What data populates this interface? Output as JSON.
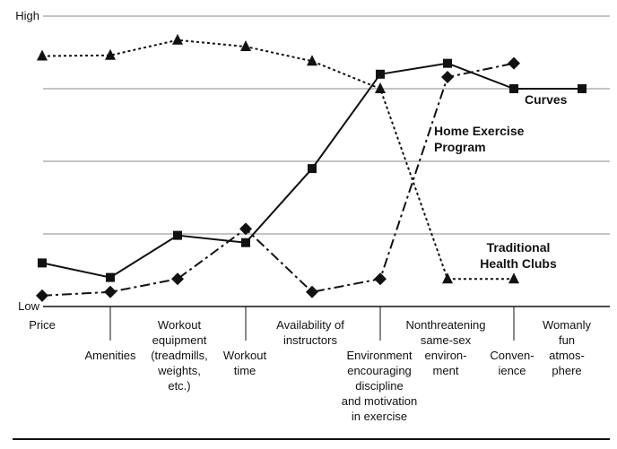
{
  "chart_data": {
    "type": "line",
    "y_axis": {
      "high_label": "High",
      "low_label": "Low",
      "ylim": [
        0,
        4
      ]
    },
    "grid": true,
    "categories": [
      [
        "Price"
      ],
      [
        "Amenities"
      ],
      [
        "Workout",
        "equipment",
        "(treadmills,",
        "weights,",
        "etc.)"
      ],
      [
        "Workout",
        "time"
      ],
      [
        "Availability of",
        "instructors"
      ],
      [
        "Environment",
        "encouraging",
        "discipline",
        "and motivation",
        "in exercise"
      ],
      [
        "Nonthreatening",
        "same-sex",
        "environ-",
        "ment"
      ],
      [
        "Conven-",
        "ience"
      ],
      [
        "Womanly",
        "fun",
        "atmos-",
        "phere"
      ]
    ],
    "series": [
      {
        "name": "Curves",
        "marker": "square",
        "line_style": "solid",
        "values": [
          0.6,
          0.4,
          0.98,
          0.88,
          1.9,
          3.2,
          3.35,
          3.0,
          3.0
        ]
      },
      {
        "name": "Home Exercise Program",
        "marker": "diamond",
        "line_style": "dash-dot",
        "values": [
          0.15,
          0.2,
          0.38,
          1.07,
          0.2,
          0.38,
          3.16,
          3.35,
          null
        ]
      },
      {
        "name": "Traditional Health Clubs",
        "marker": "triangle",
        "line_style": "dotted",
        "values": [
          3.45,
          3.46,
          3.67,
          3.58,
          3.38,
          3.0,
          0.38,
          0.38,
          null
        ]
      }
    ]
  }
}
